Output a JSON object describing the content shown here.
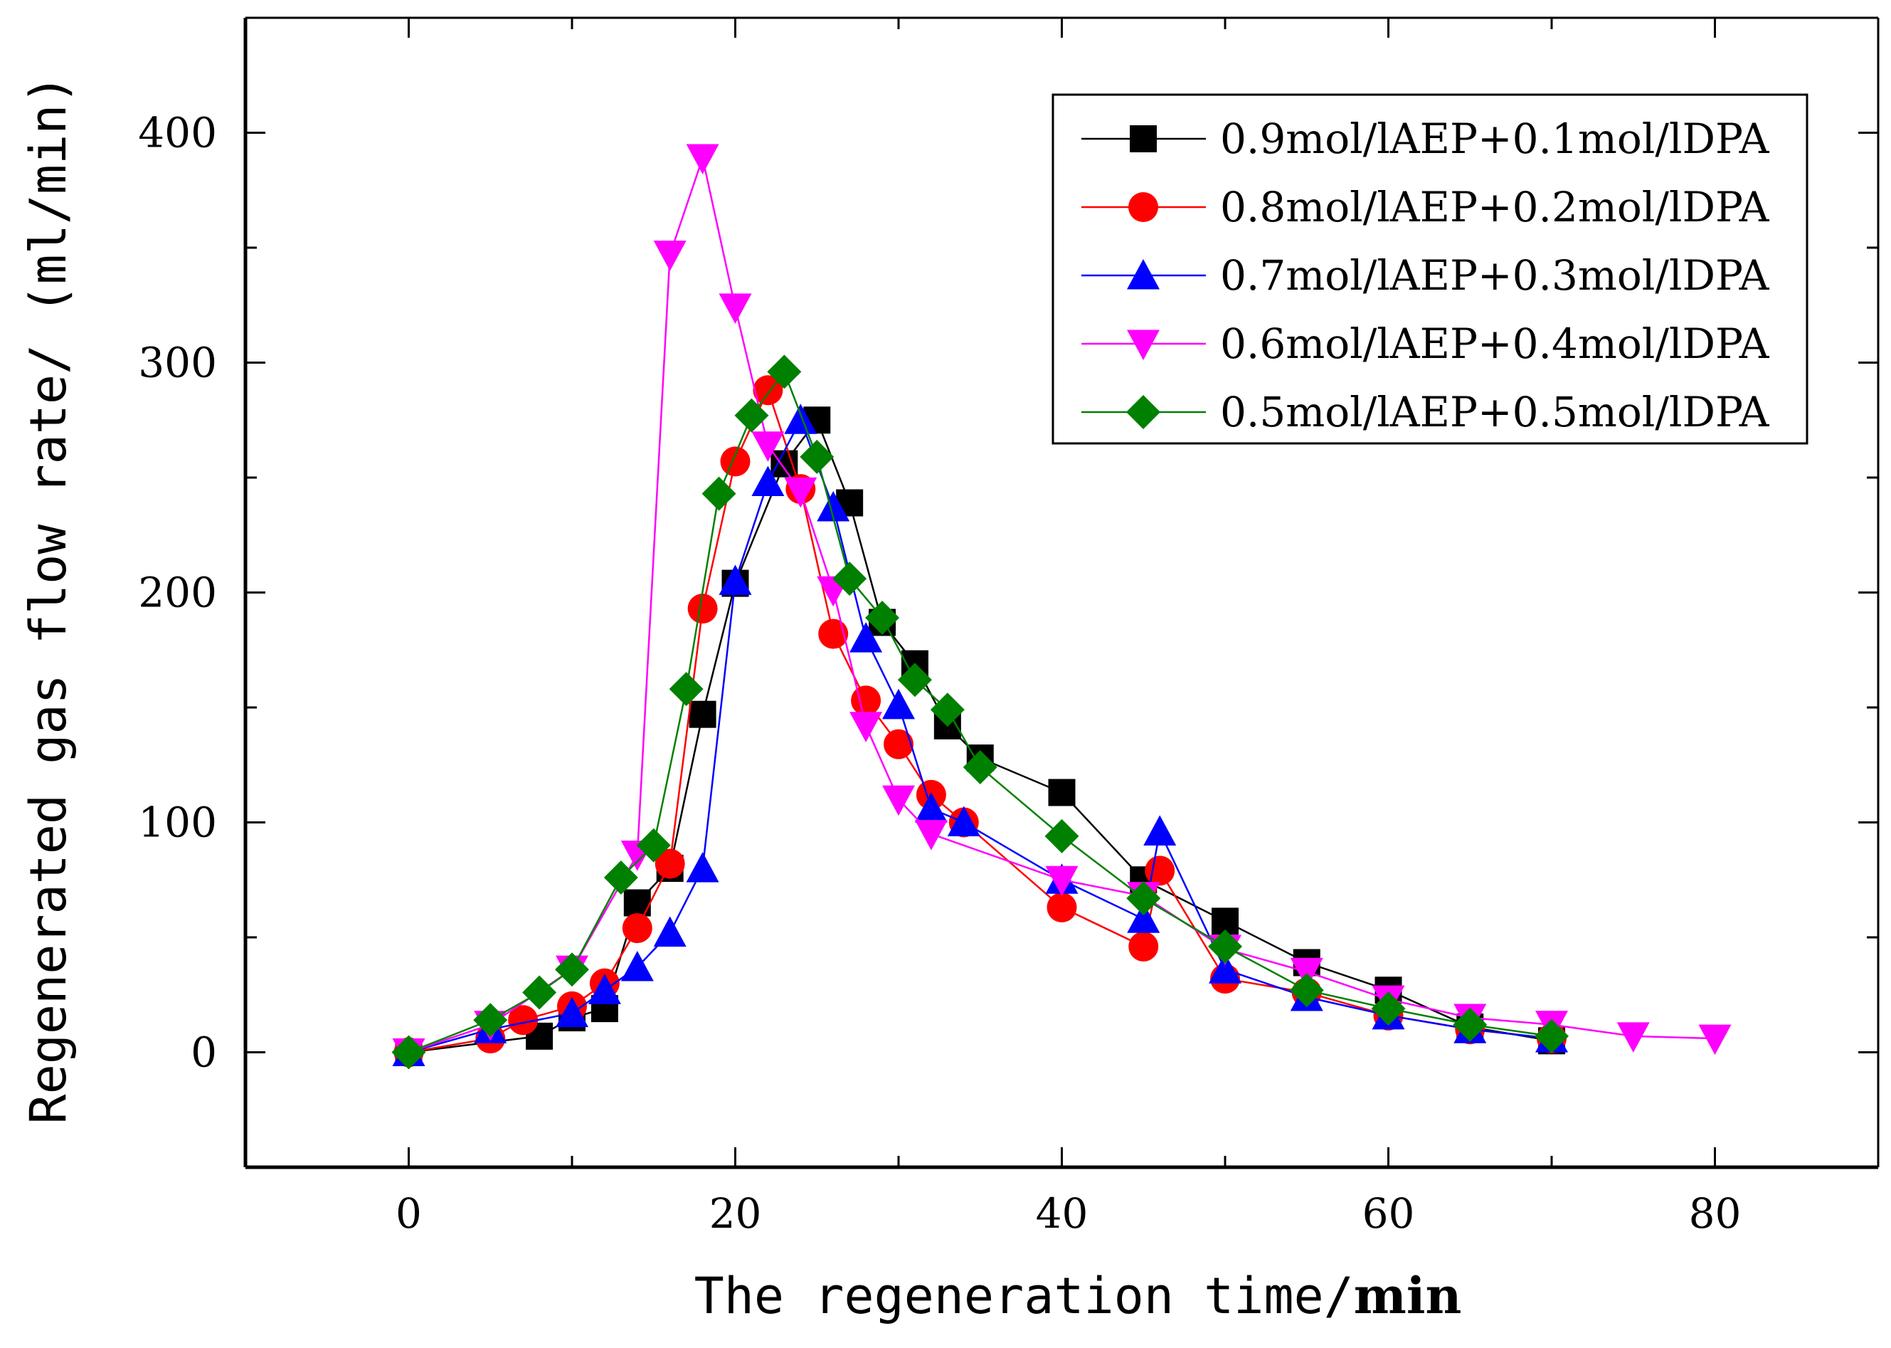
{
  "chart_data": {
    "type": "line",
    "title": "",
    "xlabel_prefix": "The regeneration time/",
    "xlabel_unit": "min",
    "ylabel": "Regenerated gas flow rate/ (ml/min)",
    "xlim": [
      -10,
      90
    ],
    "ylim": [
      -50,
      450
    ],
    "xticks": [
      0,
      20,
      40,
      60,
      80
    ],
    "yticks": [
      0,
      100,
      200,
      300,
      400
    ],
    "grid": false,
    "legend_position": "top-right",
    "series": [
      {
        "name": "0.9mol/lAEP+0.1mol/lDPA",
        "color": "#000000",
        "marker": "square",
        "x": [
          0,
          8,
          10,
          12,
          14,
          16,
          18,
          20,
          23,
          25,
          27,
          29,
          31,
          33,
          35,
          40,
          45,
          50,
          55,
          60,
          65,
          70
        ],
        "y": [
          0,
          7,
          15,
          19,
          65,
          80,
          147,
          204,
          256,
          275,
          239,
          187,
          169,
          142,
          128,
          113,
          75,
          57,
          39,
          27,
          11,
          5
        ]
      },
      {
        "name": "0.8mol/lAEP+0.2mol/lDPA",
        "color": "#ff0000",
        "marker": "circle",
        "x": [
          0,
          5,
          7,
          10,
          12,
          14,
          16,
          18,
          20,
          22,
          24,
          26,
          28,
          30,
          32,
          34,
          40,
          45,
          46,
          50,
          55,
          60,
          65,
          70
        ],
        "y": [
          0,
          6,
          14,
          20,
          30,
          54,
          82,
          193,
          257,
          288,
          245,
          182,
          153,
          134,
          112,
          100,
          63,
          46,
          79,
          32,
          26,
          16,
          10,
          6
        ]
      },
      {
        "name": "0.7mol/lAEP+0.3mol/lDPA",
        "color": "#0000ff",
        "marker": "triangle-up",
        "x": [
          0,
          5,
          10,
          12,
          14,
          16,
          18,
          20,
          22,
          24,
          26,
          28,
          30,
          32,
          34,
          40,
          45,
          46,
          50,
          55,
          60,
          65,
          70
        ],
        "y": [
          0,
          10,
          17,
          27,
          37,
          52,
          80,
          205,
          248,
          275,
          237,
          180,
          151,
          106,
          100,
          75,
          58,
          96,
          36,
          24,
          16,
          10,
          6
        ]
      },
      {
        "name": "0.6mol/lAEP+0.4mol/lDPA",
        "color": "#ff00ff",
        "marker": "triangle-down",
        "x": [
          0,
          5,
          10,
          14,
          16,
          18,
          20,
          22,
          24,
          26,
          28,
          30,
          32,
          40,
          45,
          50,
          55,
          60,
          65,
          70,
          75,
          80
        ],
        "y": [
          0,
          12,
          36,
          86,
          347,
          389,
          324,
          264,
          244,
          201,
          142,
          110,
          95,
          75,
          68,
          45,
          35,
          23,
          15,
          12,
          7,
          6
        ]
      },
      {
        "name": "0.5mol/lAEP+0.5mol/lDPA",
        "color": "#008000",
        "marker": "diamond",
        "x": [
          0,
          5,
          8,
          10,
          13,
          15,
          17,
          19,
          21,
          23,
          25,
          27,
          29,
          31,
          33,
          35,
          40,
          45,
          50,
          55,
          60,
          65,
          70
        ],
        "y": [
          0,
          14,
          26,
          36,
          76,
          90,
          158,
          243,
          277,
          296,
          259,
          206,
          189,
          162,
          149,
          124,
          94,
          67,
          46,
          27,
          19,
          12,
          7
        ]
      }
    ]
  }
}
